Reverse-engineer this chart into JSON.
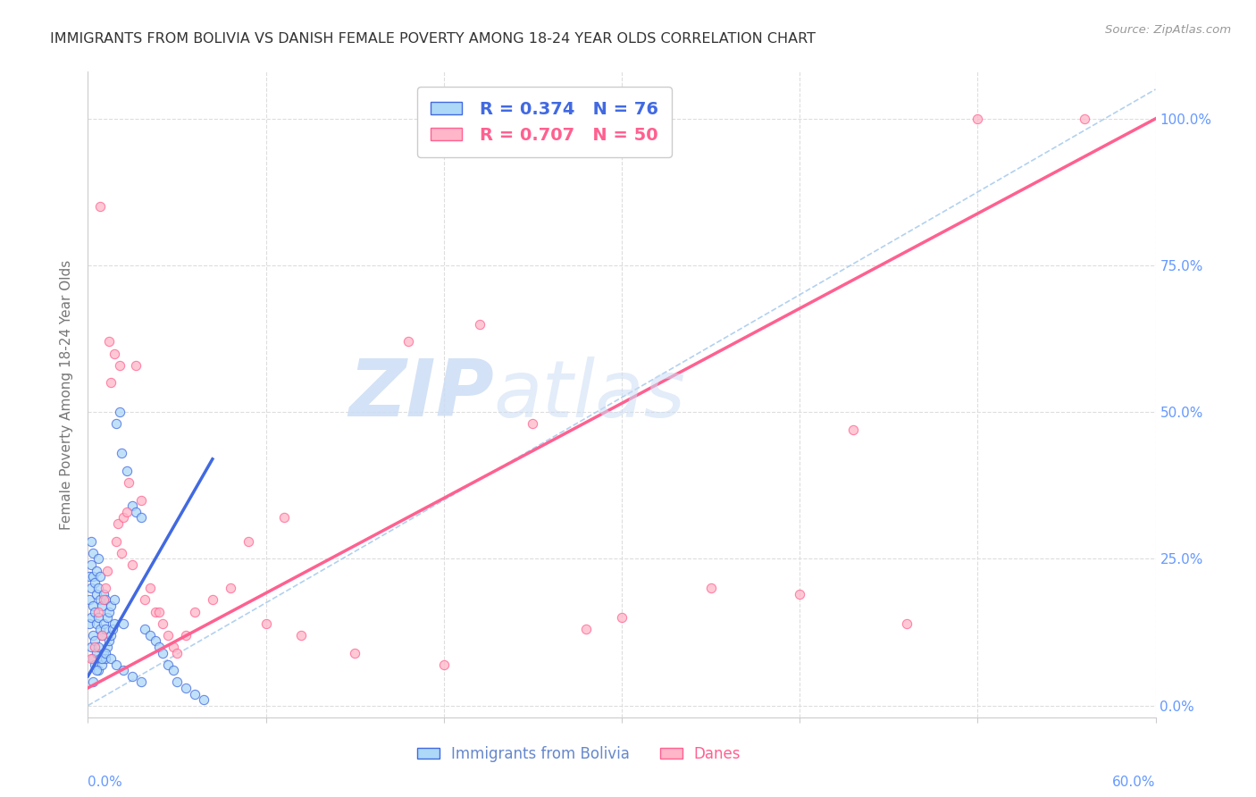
{
  "title": "IMMIGRANTS FROM BOLIVIA VS DANISH FEMALE POVERTY AMONG 18-24 YEAR OLDS CORRELATION CHART",
  "source": "Source: ZipAtlas.com",
  "ylabel_label": "Female Poverty Among 18-24 Year Olds",
  "legend_label1": "Immigrants from Bolivia",
  "legend_label2": "Danes",
  "R1": 0.374,
  "N1": 76,
  "R2": 0.707,
  "N2": 50,
  "watermark_zip": "ZIP",
  "watermark_atlas": "atlas",
  "xmin": 0.0,
  "xmax": 0.6,
  "ymin": -0.02,
  "ymax": 1.08,
  "color1": "#ADD8F7",
  "color2": "#FFB6C8",
  "line1_color": "#4169E1",
  "line2_color": "#FF6090",
  "ref_line_color": "#AACCEE",
  "right_axis_color": "#6699FF",
  "bottom_label_color1": "#6688CC",
  "bottom_label_color2": "#FF6090",
  "scatter1_x": [
    0.001,
    0.001,
    0.001,
    0.002,
    0.002,
    0.002,
    0.002,
    0.002,
    0.003,
    0.003,
    0.003,
    0.003,
    0.003,
    0.004,
    0.004,
    0.004,
    0.004,
    0.005,
    0.005,
    0.005,
    0.005,
    0.006,
    0.006,
    0.006,
    0.006,
    0.006,
    0.007,
    0.007,
    0.007,
    0.007,
    0.008,
    0.008,
    0.008,
    0.009,
    0.009,
    0.009,
    0.01,
    0.01,
    0.01,
    0.011,
    0.011,
    0.012,
    0.012,
    0.013,
    0.013,
    0.014,
    0.015,
    0.015,
    0.016,
    0.018,
    0.019,
    0.02,
    0.022,
    0.025,
    0.027,
    0.03,
    0.032,
    0.035,
    0.038,
    0.04,
    0.042,
    0.045,
    0.048,
    0.05,
    0.055,
    0.06,
    0.065,
    0.003,
    0.005,
    0.008,
    0.01,
    0.013,
    0.016,
    0.02,
    0.025,
    0.03
  ],
  "scatter1_y": [
    0.14,
    0.18,
    0.22,
    0.1,
    0.15,
    0.2,
    0.24,
    0.28,
    0.08,
    0.12,
    0.17,
    0.22,
    0.26,
    0.07,
    0.11,
    0.16,
    0.21,
    0.09,
    0.14,
    0.19,
    0.23,
    0.06,
    0.1,
    0.15,
    0.2,
    0.25,
    0.08,
    0.13,
    0.18,
    0.22,
    0.07,
    0.12,
    0.17,
    0.09,
    0.14,
    0.19,
    0.08,
    0.13,
    0.18,
    0.1,
    0.15,
    0.11,
    0.16,
    0.12,
    0.17,
    0.13,
    0.14,
    0.18,
    0.48,
    0.5,
    0.43,
    0.14,
    0.4,
    0.34,
    0.33,
    0.32,
    0.13,
    0.12,
    0.11,
    0.1,
    0.09,
    0.07,
    0.06,
    0.04,
    0.03,
    0.02,
    0.01,
    0.04,
    0.06,
    0.08,
    0.09,
    0.08,
    0.07,
    0.06,
    0.05,
    0.04
  ],
  "scatter2_x": [
    0.002,
    0.004,
    0.006,
    0.007,
    0.008,
    0.009,
    0.01,
    0.011,
    0.012,
    0.013,
    0.015,
    0.016,
    0.017,
    0.018,
    0.019,
    0.02,
    0.022,
    0.023,
    0.025,
    0.027,
    0.03,
    0.032,
    0.035,
    0.038,
    0.04,
    0.042,
    0.045,
    0.048,
    0.05,
    0.055,
    0.06,
    0.07,
    0.08,
    0.09,
    0.1,
    0.11,
    0.12,
    0.15,
    0.18,
    0.2,
    0.22,
    0.25,
    0.28,
    0.3,
    0.35,
    0.4,
    0.43,
    0.46,
    0.5,
    0.56
  ],
  "scatter2_y": [
    0.08,
    0.1,
    0.16,
    0.85,
    0.12,
    0.18,
    0.2,
    0.23,
    0.62,
    0.55,
    0.6,
    0.28,
    0.31,
    0.58,
    0.26,
    0.32,
    0.33,
    0.38,
    0.24,
    0.58,
    0.35,
    0.18,
    0.2,
    0.16,
    0.16,
    0.14,
    0.12,
    0.1,
    0.09,
    0.12,
    0.16,
    0.18,
    0.2,
    0.28,
    0.14,
    0.32,
    0.12,
    0.09,
    0.62,
    0.07,
    0.65,
    0.48,
    0.13,
    0.15,
    0.2,
    0.19,
    0.47,
    0.14,
    1.0,
    1.0
  ],
  "xtick_left_label": "0.0%",
  "xtick_right_label": "60.0%",
  "ytick_right_labels": [
    "0.0%",
    "25.0%",
    "50.0%",
    "75.0%",
    "100.0%"
  ],
  "ytick_right_vals": [
    0.0,
    0.25,
    0.5,
    0.75,
    1.0
  ]
}
